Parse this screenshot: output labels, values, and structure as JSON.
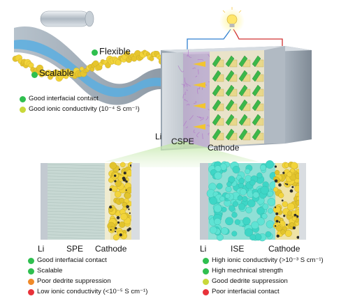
{
  "colors": {
    "good": "#2fbf4f",
    "moderate": "#c9d83a",
    "warning": "#f08a2a",
    "bad": "#e8323a",
    "electrolyte_gel": "#8fd9c9",
    "ise_particles": "#3ed6c6",
    "cathode_particles": "#f2d43a",
    "green_prism": "#3cb84a",
    "yellow_cube": "#e8d88a"
  },
  "icons": {
    "bulb": "light-bulb-icon"
  },
  "top": {
    "flexible_label": "Flexible",
    "scalable_label": "Scalable",
    "features": [
      {
        "text": "Good interfacial contact",
        "status": "good"
      },
      {
        "text": "Good ionic conductivity (10⁻⁴ S cm⁻¹)",
        "status": "moderate"
      }
    ],
    "block_labels": {
      "li": "Li",
      "cspe": "CSPE",
      "cathode": "Cathode"
    }
  },
  "left_panel": {
    "labels": {
      "li": "Li",
      "electrolyte": "SPE",
      "cathode": "Cathode"
    },
    "features": [
      {
        "text": "Good interfacial contact",
        "status": "good"
      },
      {
        "text": "Scalable",
        "status": "good"
      },
      {
        "text": "Poor dedrite suppression",
        "status": "warning"
      },
      {
        "text": "Low ionic conductivity (<10⁻⁵ S cm⁻¹)",
        "status": "bad"
      }
    ]
  },
  "right_panel": {
    "labels": {
      "li": "Li",
      "electrolyte": "ISE",
      "cathode": "Cathode"
    },
    "features": [
      {
        "text": "High ionic conductivity (>10⁻³ S cm⁻¹)",
        "status": "good"
      },
      {
        "text": "High mechnical strength",
        "status": "good"
      },
      {
        "text": "Good dedrite suppression",
        "status": "moderate"
      },
      {
        "text": "Poor interfacial contact",
        "status": "bad"
      }
    ]
  }
}
